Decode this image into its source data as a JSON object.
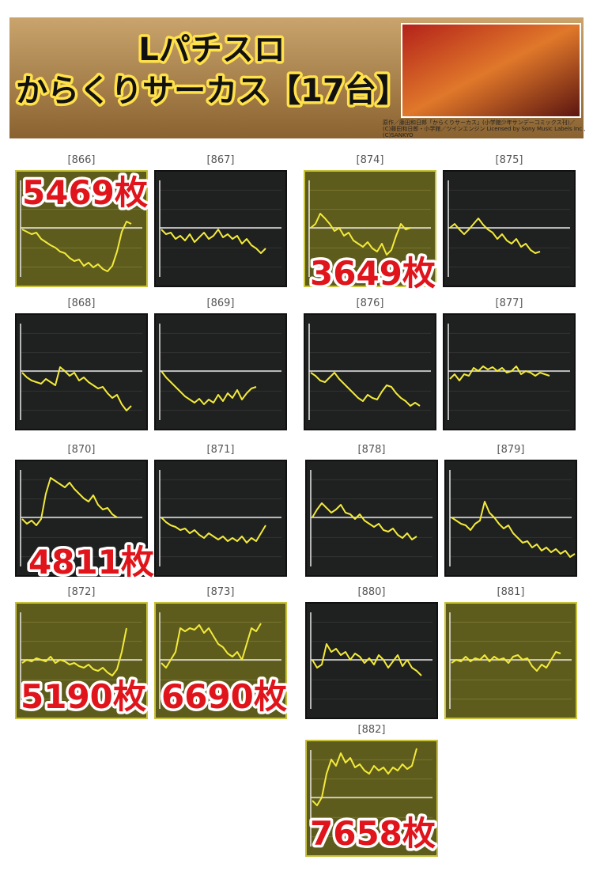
{
  "header": {
    "title_line1": "Lパチスロ",
    "title_line2": "からくりサーカス【17台】",
    "copyright": [
      "原作／藤田和日郎「からくりサーカス」(小学館少年サンデーコミックス刊)／",
      "(C)藤田和日郎・小学館／ツインエンジン Licensed by Sony Music Labels Inc.,",
      "(C)SANKYO"
    ]
  },
  "panels": [
    {
      "label": "[866]",
      "highlight": true,
      "count": "5469枚",
      "trace": [
        -2,
        -5,
        -8,
        -6,
        -14,
        -18,
        -22,
        -25,
        -30,
        -32,
        -38,
        -42,
        -40,
        -48,
        -44,
        -50,
        -46,
        -52,
        -55,
        -48,
        -30,
        -5,
        8,
        5
      ]
    },
    {
      "label": "[867]",
      "highlight": false,
      "trace": [
        -2,
        -8,
        -6,
        -14,
        -10,
        -16,
        -8,
        -18,
        -12,
        -6,
        -14,
        -10,
        -2,
        -12,
        -8,
        -14,
        -10,
        -20,
        -14,
        -22,
        -26,
        -32,
        -26
      ]
    },
    {
      "label": "[874]",
      "highlight": true,
      "count": "3649枚",
      "trace": [
        0,
        5,
        18,
        12,
        5,
        -4,
        0,
        -10,
        -6,
        -16,
        -20,
        -24,
        -18,
        -26,
        -30,
        -20,
        -34,
        -28,
        -10,
        5,
        -2,
        0
      ]
    },
    {
      "label": "[875]",
      "highlight": false,
      "trace": [
        0,
        5,
        -2,
        -8,
        -2,
        5,
        12,
        4,
        -2,
        -6,
        -14,
        -8,
        -16,
        -20,
        -14,
        -24,
        -20,
        -28,
        -32,
        -30
      ]
    },
    {
      "label": "[868]",
      "highlight": false,
      "trace": [
        -2,
        -8,
        -12,
        -14,
        -16,
        -10,
        -14,
        -18,
        5,
        0,
        -6,
        -2,
        -12,
        -8,
        -14,
        -18,
        -22,
        -20,
        -28,
        -34,
        -30,
        -42,
        -50,
        -44
      ]
    },
    {
      "label": "[869]",
      "highlight": false,
      "trace": [
        0,
        -8,
        -14,
        -20,
        -26,
        -32,
        -36,
        -40,
        -35,
        -42,
        -36,
        -40,
        -30,
        -38,
        -28,
        -34,
        -24,
        -36,
        -28,
        -22,
        -20
      ]
    },
    {
      "label": "[876]",
      "highlight": false,
      "trace": [
        -2,
        -6,
        -12,
        -14,
        -8,
        -2,
        -10,
        -16,
        -22,
        -28,
        -34,
        -38,
        -30,
        -34,
        -36,
        -26,
        -18,
        -20,
        -28,
        -34,
        -38,
        -44,
        -40,
        -44
      ]
    },
    {
      "label": "[877]",
      "highlight": false,
      "trace": [
        -10,
        -4,
        -12,
        -4,
        -6,
        4,
        0,
        6,
        2,
        5,
        0,
        4,
        -2,
        0,
        6,
        -4,
        0,
        -2,
        -6,
        -2,
        -4,
        -6
      ]
    },
    {
      "label": "[870]",
      "highlight": false,
      "count": "4811枚",
      "trace": [
        -2,
        -8,
        -4,
        -10,
        -2,
        30,
        50,
        46,
        42,
        38,
        44,
        36,
        30,
        24,
        20,
        28,
        16,
        10,
        12,
        4,
        0
      ]
    },
    {
      "label": "[871]",
      "highlight": false,
      "trace": [
        0,
        -6,
        -10,
        -12,
        -16,
        -14,
        -20,
        -16,
        -22,
        -26,
        -20,
        -24,
        -28,
        -24,
        -30,
        -26,
        -30,
        -24,
        -32,
        -26,
        -30,
        -20,
        -10
      ]
    },
    {
      "label": "[878]",
      "highlight": false,
      "trace": [
        0,
        10,
        18,
        12,
        6,
        10,
        16,
        6,
        4,
        -2,
        4,
        -4,
        -8,
        -12,
        -8,
        -16,
        -18,
        -14,
        -22,
        -26,
        -20,
        -28,
        -24
      ]
    },
    {
      "label": "[879]",
      "highlight": false,
      "trace": [
        0,
        -4,
        -8,
        -10,
        -16,
        -8,
        -4,
        20,
        6,
        0,
        -8,
        -14,
        -10,
        -20,
        -26,
        -32,
        -30,
        -38,
        -34,
        -42,
        -38,
        -44,
        -40,
        -46,
        -42,
        -50,
        -46
      ]
    },
    {
      "label": "[872]",
      "highlight": true,
      "count": "5190枚",
      "trace": [
        -4,
        0,
        -2,
        2,
        0,
        -2,
        4,
        -4,
        0,
        -2,
        -6,
        -4,
        -8,
        -10,
        -6,
        -12,
        -14,
        -10,
        -16,
        -20,
        -12,
        10,
        40
      ]
    },
    {
      "label": "[873]",
      "highlight": true,
      "count": "6690枚",
      "trace": [
        -4,
        -10,
        0,
        10,
        40,
        36,
        40,
        38,
        44,
        34,
        40,
        30,
        20,
        16,
        8,
        4,
        10,
        0,
        20,
        40,
        36,
        46
      ]
    },
    {
      "label": "[880]",
      "highlight": false,
      "trace": [
        0,
        -10,
        -6,
        20,
        10,
        14,
        6,
        10,
        0,
        8,
        4,
        -4,
        2,
        -6,
        6,
        0,
        -10,
        -2,
        6,
        -8,
        0,
        -10,
        -14,
        -20
      ]
    },
    {
      "label": "[881]",
      "highlight": true,
      "trace": [
        -4,
        0,
        -2,
        4,
        -2,
        2,
        0,
        6,
        -2,
        4,
        0,
        2,
        -4,
        4,
        6,
        0,
        2,
        -8,
        -14,
        -6,
        -10,
        0,
        10,
        8
      ]
    },
    {
      "label": "[882]",
      "highlight": true,
      "count": "7658枚",
      "trace": [
        -4,
        -10,
        0,
        30,
        48,
        40,
        56,
        44,
        50,
        38,
        42,
        34,
        30,
        40,
        34,
        38,
        30,
        38,
        34,
        42,
        36,
        40,
        62
      ]
    }
  ]
}
